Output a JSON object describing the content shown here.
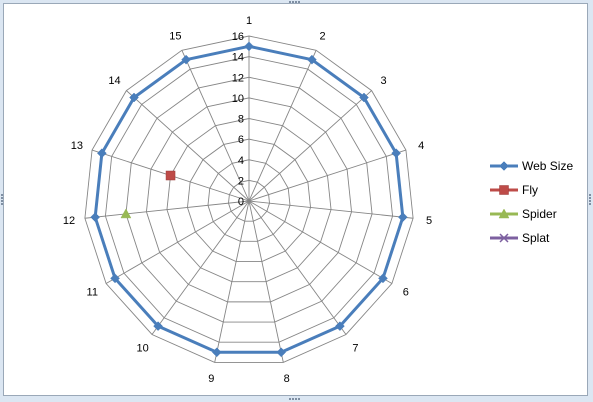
{
  "chart_data": {
    "type": "radar",
    "categories": [
      "1",
      "2",
      "3",
      "4",
      "5",
      "6",
      "7",
      "8",
      "9",
      "10",
      "11",
      "12",
      "13",
      "14",
      "15"
    ],
    "radial_ticks": [
      "0",
      "2",
      "4",
      "6",
      "8",
      "10",
      "12",
      "14",
      "16"
    ],
    "rlim": [
      0,
      16
    ],
    "grid": true,
    "legend_position": "right",
    "series": [
      {
        "name": "Web Size",
        "values": [
          15,
          15,
          15,
          15,
          15,
          15,
          15,
          15,
          15,
          15,
          15,
          15,
          15,
          15,
          15
        ],
        "color": "#4a7ebb",
        "marker": "diamond"
      },
      {
        "name": "Fly",
        "values": [
          null,
          null,
          null,
          null,
          null,
          null,
          null,
          null,
          null,
          null,
          null,
          null,
          8,
          null,
          null
        ],
        "color": "#be4b48",
        "marker": "square"
      },
      {
        "name": "Spider",
        "values": [
          null,
          null,
          null,
          null,
          null,
          null,
          null,
          null,
          null,
          null,
          null,
          12,
          null,
          null,
          null
        ],
        "color": "#98b954",
        "marker": "triangle"
      },
      {
        "name": "Splat",
        "values": [
          null,
          null,
          null,
          null,
          null,
          null,
          null,
          null,
          null,
          null,
          null,
          null,
          null,
          null,
          null
        ],
        "color": "#7d60a0",
        "marker": "x"
      }
    ]
  }
}
